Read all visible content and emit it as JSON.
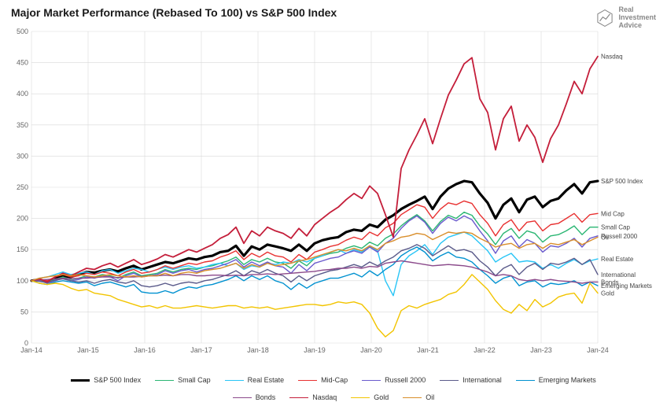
{
  "title": "Major Market Performance (Rebased To 100) vs S&P 500 Index",
  "brand": {
    "line1": "Real",
    "line2": "Investment",
    "line3": "Advice"
  },
  "chart": {
    "type": "line",
    "background_color": "#ffffff",
    "grid_color": "#d9d9d9",
    "axis_font_size": 9,
    "title_font_size": 14,
    "ylim": [
      0,
      500
    ],
    "ytick_step": 50,
    "yticks": [
      0,
      50,
      100,
      150,
      200,
      250,
      300,
      350,
      400,
      450,
      500
    ],
    "xticks": [
      "Jan-14",
      "Jan-15",
      "Jan-16",
      "Jan-17",
      "Jan-18",
      "Jan-19",
      "Jan-20",
      "Jan-21",
      "Jan-22",
      "Jan-23",
      "Jan-24"
    ],
    "series": [
      {
        "name": "S&P 500 Index",
        "color": "#000000",
        "width": 3.2,
        "label": "S&P 500 Index",
        "points": [
          100,
          102,
          98,
          104,
          108,
          106,
          110,
          114,
          113,
          116,
          118,
          115,
          120,
          124,
          118,
          122,
          126,
          130,
          128,
          132,
          136,
          134,
          138,
          140,
          146,
          148,
          156,
          140,
          155,
          150,
          158,
          155,
          152,
          148,
          158,
          148,
          160,
          165,
          168,
          170,
          178,
          182,
          180,
          190,
          186,
          198,
          205,
          215,
          222,
          228,
          235,
          215,
          235,
          248,
          255,
          260,
          258,
          240,
          225,
          200,
          222,
          232,
          210,
          230,
          235,
          218,
          228,
          232,
          245,
          255,
          240,
          258,
          260
        ]
      },
      {
        "name": "Small Cap",
        "color": "#2bb673",
        "width": 1.4,
        "label": "Small Cap",
        "points": [
          100,
          101,
          98,
          102,
          106,
          102,
          104,
          108,
          106,
          110,
          108,
          104,
          110,
          114,
          108,
          110,
          112,
          118,
          114,
          118,
          120,
          118,
          122,
          124,
          128,
          132,
          138,
          126,
          134,
          130,
          136,
          130,
          128,
          120,
          132,
          124,
          136,
          140,
          144,
          146,
          152,
          156,
          152,
          162,
          156,
          168,
          175,
          188,
          198,
          206,
          196,
          180,
          195,
          205,
          200,
          210,
          205,
          188,
          175,
          158,
          176,
          184,
          168,
          180,
          176,
          162,
          172,
          174,
          180,
          188,
          174,
          186,
          186
        ]
      },
      {
        "name": "Real Estate",
        "color": "#29c5f6",
        "width": 1.4,
        "label": "Real Estate",
        "points": [
          100,
          104,
          106,
          110,
          114,
          110,
          112,
          114,
          110,
          116,
          118,
          112,
          116,
          120,
          118,
          114,
          118,
          122,
          118,
          122,
          124,
          120,
          122,
          126,
          128,
          124,
          128,
          118,
          124,
          122,
          128,
          126,
          130,
          128,
          134,
          130,
          136,
          140,
          146,
          150,
          144,
          150,
          146,
          156,
          148,
          100,
          76,
          126,
          140,
          148,
          158,
          142,
          160,
          170,
          174,
          178,
          172,
          160,
          148,
          130,
          138,
          144,
          130,
          132,
          130,
          120,
          126,
          120,
          128,
          134,
          126,
          132,
          135
        ]
      },
      {
        "name": "Mid-Cap",
        "color": "#e83030",
        "width": 1.4,
        "label": "Mid Cap",
        "points": [
          100,
          103,
          100,
          106,
          110,
          106,
          108,
          112,
          110,
          114,
          112,
          108,
          114,
          118,
          112,
          114,
          118,
          124,
          120,
          124,
          128,
          126,
          130,
          132,
          138,
          142,
          148,
          134,
          144,
          138,
          146,
          140,
          138,
          130,
          142,
          134,
          146,
          150,
          155,
          158,
          165,
          170,
          166,
          178,
          172,
          185,
          192,
          206,
          214,
          222,
          218,
          200,
          215,
          225,
          222,
          228,
          224,
          206,
          192,
          172,
          190,
          198,
          180,
          194,
          196,
          180,
          190,
          192,
          200,
          208,
          194,
          206,
          208
        ]
      },
      {
        "name": "Russell 2000",
        "color": "#6a5acd",
        "width": 1.4,
        "label": "Russell 2000",
        "points": [
          100,
          100,
          96,
          100,
          104,
          100,
          102,
          106,
          104,
          108,
          106,
          100,
          108,
          112,
          106,
          108,
          110,
          116,
          112,
          116,
          118,
          114,
          118,
          120,
          124,
          128,
          134,
          122,
          130,
          124,
          130,
          124,
          122,
          112,
          126,
          116,
          128,
          132,
          136,
          138,
          144,
          148,
          144,
          154,
          146,
          160,
          168,
          184,
          196,
          204,
          194,
          176,
          192,
          202,
          196,
          204,
          198,
          180,
          164,
          144,
          164,
          172,
          154,
          166,
          160,
          146,
          156,
          154,
          160,
          168,
          154,
          168,
          172
        ]
      },
      {
        "name": "International",
        "color": "#5a5a8a",
        "width": 1.4,
        "label": "International",
        "points": [
          100,
          99,
          97,
          101,
          103,
          100,
          98,
          100,
          96,
          100,
          102,
          98,
          96,
          100,
          92,
          90,
          92,
          96,
          92,
          96,
          98,
          96,
          100,
          102,
          106,
          110,
          116,
          108,
          116,
          112,
          118,
          112,
          108,
          98,
          108,
          100,
          108,
          112,
          116,
          118,
          122,
          126,
          122,
          130,
          124,
          132,
          138,
          148,
          152,
          158,
          152,
          140,
          148,
          156,
          148,
          150,
          146,
          132,
          122,
          108,
          120,
          126,
          110,
          122,
          128,
          118,
          128,
          126,
          130,
          136,
          126,
          134,
          110
        ]
      },
      {
        "name": "Emerging Markets",
        "color": "#0091d0",
        "width": 1.4,
        "label": "Emerging Markets",
        "points": [
          100,
          96,
          94,
          98,
          100,
          98,
          96,
          98,
          92,
          96,
          98,
          94,
          90,
          94,
          82,
          80,
          80,
          84,
          80,
          86,
          90,
          88,
          92,
          94,
          98,
          102,
          108,
          100,
          108,
          102,
          108,
          100,
          96,
          86,
          96,
          88,
          96,
          100,
          104,
          104,
          108,
          112,
          106,
          116,
          108,
          118,
          126,
          140,
          148,
          154,
          146,
          132,
          140,
          146,
          138,
          136,
          130,
          118,
          108,
          96,
          104,
          108,
          92,
          98,
          100,
          90,
          96,
          94,
          96,
          100,
          92,
          98,
          92
        ]
      },
      {
        "name": "Bonds",
        "color": "#8b4a8b",
        "width": 1.4,
        "label": "Bonds",
        "points": [
          100,
          101,
          102,
          103,
          104,
          103,
          104,
          104,
          105,
          106,
          106,
          105,
          106,
          106,
          107,
          108,
          108,
          109,
          108,
          110,
          110,
          108,
          108,
          109,
          109,
          108,
          109,
          108,
          110,
          110,
          111,
          110,
          111,
          112,
          113,
          114,
          115,
          117,
          118,
          120,
          120,
          122,
          120,
          123,
          122,
          128,
          130,
          132,
          130,
          128,
          126,
          124,
          125,
          126,
          125,
          124,
          122,
          118,
          114,
          108,
          110,
          108,
          102,
          100,
          102,
          100,
          102,
          100,
          99,
          98,
          96,
          98,
          98
        ]
      },
      {
        "name": "Nasdaq",
        "color": "#c41e3a",
        "width": 1.8,
        "label": "Nasdaq",
        "points": [
          100,
          103,
          98,
          106,
          112,
          108,
          114,
          120,
          118,
          124,
          128,
          122,
          128,
          134,
          126,
          130,
          135,
          142,
          138,
          144,
          150,
          146,
          152,
          158,
          168,
          174,
          186,
          160,
          180,
          172,
          186,
          180,
          176,
          168,
          184,
          172,
          190,
          200,
          210,
          218,
          230,
          240,
          232,
          252,
          240,
          206,
          170,
          280,
          310,
          334,
          360,
          320,
          360,
          398,
          422,
          448,
          458,
          392,
          370,
          310,
          360,
          380,
          324,
          350,
          330,
          290,
          328,
          350,
          384,
          420,
          400,
          440,
          460
        ]
      },
      {
        "name": "Gold",
        "color": "#f2c400",
        "width": 1.4,
        "label": "Gold",
        "points": [
          100,
          96,
          94,
          96,
          94,
          88,
          84,
          86,
          80,
          78,
          76,
          70,
          66,
          62,
          58,
          60,
          56,
          60,
          56,
          56,
          58,
          60,
          58,
          56,
          58,
          60,
          60,
          56,
          58,
          56,
          58,
          54,
          56,
          58,
          60,
          62,
          62,
          60,
          62,
          66,
          64,
          66,
          62,
          48,
          24,
          10,
          20,
          52,
          60,
          56,
          62,
          66,
          70,
          78,
          82,
          94,
          110,
          98,
          86,
          68,
          54,
          48,
          62,
          52,
          70,
          58,
          64,
          74,
          78,
          80,
          64,
          96,
          80
        ]
      },
      {
        "name": "Oil",
        "color": "#d98e2b",
        "width": 1.4,
        "label": "Oil",
        "points": [
          100,
          104,
          106,
          108,
          110,
          108,
          110,
          108,
          106,
          108,
          110,
          108,
          106,
          108,
          106,
          108,
          108,
          112,
          108,
          112,
          114,
          112,
          116,
          118,
          120,
          124,
          128,
          120,
          126,
          122,
          128,
          124,
          126,
          128,
          132,
          134,
          138,
          142,
          146,
          150,
          148,
          152,
          148,
          156,
          150,
          160,
          164,
          170,
          172,
          176,
          174,
          166,
          172,
          178,
          176,
          178,
          176,
          168,
          162,
          154,
          158,
          160,
          152,
          158,
          160,
          152,
          160,
          158,
          162,
          166,
          158,
          164,
          170
        ]
      }
    ]
  },
  "legend": [
    {
      "label": "S&P 500 Index",
      "color": "#000000",
      "width": 3.2
    },
    {
      "label": "Small Cap",
      "color": "#2bb673",
      "width": 1.4
    },
    {
      "label": "Real Estate",
      "color": "#29c5f6",
      "width": 1.4
    },
    {
      "label": "Mid-Cap",
      "color": "#e83030",
      "width": 1.4
    },
    {
      "label": "Russell 2000",
      "color": "#6a5acd",
      "width": 1.4
    },
    {
      "label": "International",
      "color": "#5a5a8a",
      "width": 1.4
    },
    {
      "label": "Emerging Markets",
      "color": "#0091d0",
      "width": 1.4
    },
    {
      "label": "Bonds",
      "color": "#8b4a8b",
      "width": 1.4
    },
    {
      "label": "Nasdaq",
      "color": "#c41e3a",
      "width": 1.4
    },
    {
      "label": "Gold",
      "color": "#f2c400",
      "width": 1.4
    },
    {
      "label": "Oil",
      "color": "#d98e2b",
      "width": 1.4
    }
  ]
}
